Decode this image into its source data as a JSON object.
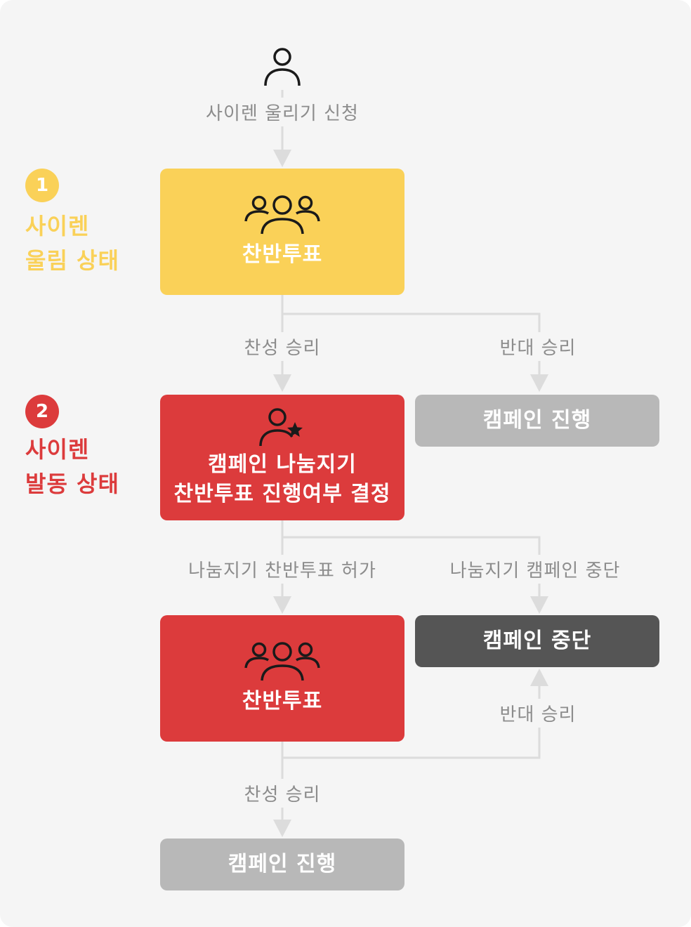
{
  "colors": {
    "stage1": "#fad158",
    "stage2": "#dc3b3c",
    "neutral": "#b8b8b8",
    "stopped": "#555555",
    "connector": "#dcdcdc",
    "edge_text": "#8c8c8c"
  },
  "start": {
    "icon": "person-icon",
    "label": "사이렌 울리기 신청"
  },
  "stages": [
    {
      "number": "1",
      "label": "사이렌\n울림 상태"
    },
    {
      "number": "2",
      "label": "사이렌\n발동 상태"
    }
  ],
  "nodes": {
    "vote1": {
      "icon": "group-icon",
      "title": "찬반투표"
    },
    "decision": {
      "icon": "person-star-icon",
      "title_line1": "캠페인 나눔지기",
      "title_line2": "찬반투표 진행여부 결정"
    },
    "proceed1": {
      "title": "캠페인 진행"
    },
    "vote2": {
      "icon": "group-icon",
      "title": "찬반투표"
    },
    "stop": {
      "title": "캠페인 중단"
    },
    "proceed2": {
      "title": "캠페인 진행"
    }
  },
  "edges": {
    "vote1_yes": "찬성 승리",
    "vote1_no": "반대 승리",
    "decision_allow": "나눔지기 찬반투표 허가",
    "decision_stop": "나눔지기 캠페인 중단",
    "vote2_no": "반대 승리",
    "vote2_yes": "찬성 승리"
  }
}
